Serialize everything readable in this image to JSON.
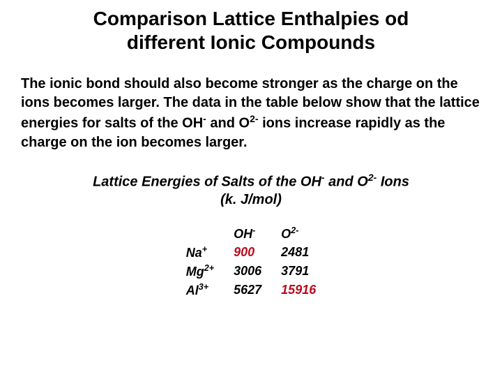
{
  "title": {
    "line1": "Comparison Lattice Enthalpies od",
    "line2": "different Ionic Compounds",
    "fontsize": 28,
    "color": "#000000"
  },
  "intro": {
    "text_parts": {
      "p1": "The ionic bond should also become stronger as the charge on the ions becomes larger. The data in the table below show that the lattice energies for salts of the OH",
      "sup1": "-",
      "p2": " and O",
      "sup2": "2-",
      "p3": " ions increase rapidly as the charge on the ion becomes larger."
    },
    "fontsize": 20,
    "color": "#000000"
  },
  "table_title": {
    "parts": {
      "a": "Lattice Energies of Salts of the OH",
      "sup1": "-",
      "b": " and O",
      "sup2": "2-",
      "c": " Ions",
      "unit": "(k. J/mol)"
    },
    "fontsize": 20,
    "color": "#000000"
  },
  "table": {
    "columns": {
      "col1": {
        "label": "OH",
        "sup": "-"
      },
      "col2": {
        "label": "O",
        "sup": "2-"
      }
    },
    "rows": [
      {
        "cation": "Na",
        "sup": "+",
        "oh": "900",
        "o2": "2481",
        "oh_hl": true,
        "o2_hl": false
      },
      {
        "cation": "Mg",
        "sup": "2+",
        "oh": "3006",
        "o2": "3791",
        "oh_hl": false,
        "o2_hl": false
      },
      {
        "cation": "Al",
        "sup": "3+",
        "oh": "5627",
        "o2": "15916",
        "oh_hl": false,
        "o2_hl": true
      }
    ],
    "fontsize": 18,
    "highlight_color": "#bb0a1e",
    "text_color": "#000000"
  }
}
